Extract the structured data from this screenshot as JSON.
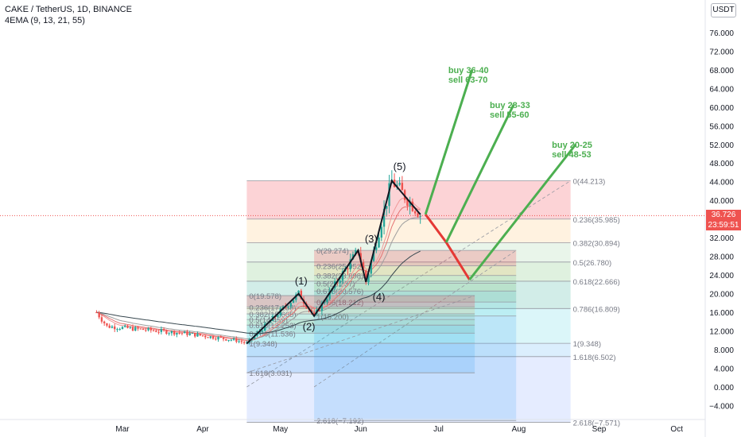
{
  "header": {
    "title": "CAKE / TetherUS, 1D, BINANCE",
    "indicator": "4EMA (9, 13, 21, 55)"
  },
  "currency": "USDT",
  "last_price": {
    "value": "36.726",
    "countdown": "23:59:51"
  },
  "colors": {
    "up": "#26a69a",
    "down": "#ef5350",
    "green_arrow": "#4caf50",
    "red_path": "#e53935",
    "wave": "#131722",
    "axis_text": "#131722",
    "fib_red": "#f23645",
    "fib_blue": "#2962ff"
  },
  "chart_data": {
    "type": "candlestick",
    "symbol": "CAKE / TetherUS",
    "interval": "1D",
    "exchange": "BINANCE",
    "x_ticks": [
      "Mar",
      "Apr",
      "May",
      "Jun",
      "Jul",
      "Aug",
      "Sep",
      "Oct"
    ],
    "y_ticks": [
      "76.000",
      "72.000",
      "68.000",
      "64.000",
      "60.000",
      "56.000",
      "52.000",
      "48.000",
      "44.000",
      "40.000",
      "36.000",
      "32.000",
      "28.000",
      "24.000",
      "20.000",
      "16.000",
      "12.000",
      "8.000",
      "4.000",
      "0.000",
      "−4.000"
    ],
    "y_tick_values": [
      76,
      72,
      68,
      64,
      60,
      56,
      52,
      48,
      44,
      40,
      36,
      32,
      28,
      24,
      20,
      16,
      12,
      8,
      4,
      0,
      -4
    ],
    "ylim": [
      -6.5,
      82
    ],
    "wave_labels": [
      {
        "text": "(1)",
        "day": 45,
        "price": 22.0
      },
      {
        "text": "(2)",
        "day": 48,
        "price": 12.2
      },
      {
        "text": "(3)",
        "day": 72,
        "price": 31.0
      },
      {
        "text": "(4)",
        "day": 75,
        "price": 18.6
      },
      {
        "text": "(5)",
        "day": 83,
        "price": 46.5
      }
    ],
    "fib_grid_1": {
      "x_start_day": 24,
      "x_end_day": 149,
      "high": 44.213,
      "low": -7.571,
      "levels": [
        {
          "label": "0(44.213)",
          "price": 44.213
        },
        {
          "label": "0.236(35.985)",
          "price": 35.985
        },
        {
          "label": "0.382(30.894)",
          "price": 30.894
        },
        {
          "label": "0.5(26.780)",
          "price": 26.78
        },
        {
          "label": "0.618(22.666)",
          "price": 22.666
        },
        {
          "label": "0.786(16.809)",
          "price": 16.809
        },
        {
          "label": "1(9.348)",
          "price": 9.348
        },
        {
          "label": "1.618(6.502)",
          "price": 6.502
        },
        {
          "label": "2.618(−7.571)",
          "price": -7.571
        }
      ]
    },
    "fib_grid_2": {
      "x_start_day": 50,
      "x_end_day": 128,
      "high": 29.274,
      "low": -7.192,
      "levels": [
        {
          "label": "0(29.274)",
          "price": 29.274
        },
        {
          "label": "0.236(25.952)",
          "price": 25.952
        },
        {
          "label": "0.382(23.898)",
          "price": 23.898
        },
        {
          "label": "0.5(22.237)",
          "price": 22.237
        },
        {
          "label": "0.618(20.576)",
          "price": 20.576
        },
        {
          "label": "0.786(18.212)",
          "price": 18.212
        },
        {
          "label": "1(15.200)",
          "price": 15.2
        },
        {
          "label": "2.618(−7.192)",
          "price": -7.192
        }
      ]
    },
    "fib_grid_3": {
      "x_start_day": 24,
      "x_end_day": 112,
      "high": 19.578,
      "low": 3.031,
      "levels": [
        {
          "label": "0(19.578)",
          "price": 19.578
        },
        {
          "label": "0.236(17.158)",
          "price": 17.158
        },
        {
          "label": "0.382(15.665)",
          "price": 15.665
        },
        {
          "label": "0.5(14.459)",
          "price": 14.459
        },
        {
          "label": "0.618(13.253)",
          "price": 13.253
        },
        {
          "label": "0.786(11.536)",
          "price": 11.536
        },
        {
          "label": "1(9.348)",
          "price": 9.348
        },
        {
          "label": "1.618(3.031)",
          "price": 3.031
        }
      ]
    },
    "projections": [
      {
        "label_lines": [
          "buy 36-40",
          "sell 63-70"
        ],
        "from_day": 93,
        "from_price": 37.0,
        "to_day": 111,
        "to_price": 68.0
      },
      {
        "label_lines": [
          "buy 28-33",
          "sell 55-60"
        ],
        "from_day": 101,
        "from_price": 31.0,
        "to_day": 127,
        "to_price": 60.5
      },
      {
        "label_lines": [
          "buy 20-25",
          "sell 48-53"
        ],
        "from_day": 110,
        "from_price": 23.0,
        "to_day": 151,
        "to_price": 52.0
      }
    ],
    "red_path": [
      {
        "day": 93,
        "price": 37.0
      },
      {
        "day": 101,
        "price": 31.0
      },
      {
        "day": 110,
        "price": 23.0
      }
    ],
    "wave_path": [
      {
        "day": 24,
        "price": 9.3
      },
      {
        "day": 44,
        "price": 20.0
      },
      {
        "day": 50,
        "price": 15.2
      },
      {
        "day": 67,
        "price": 29.3
      },
      {
        "day": 70,
        "price": 22.5
      },
      {
        "day": 80,
        "price": 44.2
      },
      {
        "day": 91,
        "price": 37.0
      }
    ],
    "last_price_value": 36.726
  }
}
